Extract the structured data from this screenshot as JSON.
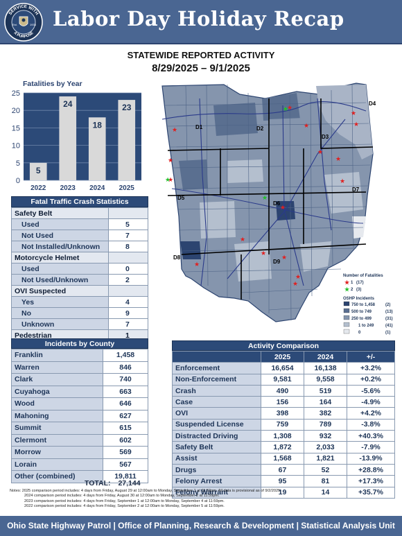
{
  "header": {
    "title": "Labor Day Holiday Recap",
    "seal": {
      "top_text": "SERVICE WITH",
      "bottom_text": "A PURPOSE",
      "est": "Est.",
      "year": "1933"
    }
  },
  "main_title": "STATEWIDE REPORTED ACTIVITY",
  "date_range": "8/29/2025 – 9/1/2025",
  "chart_data": {
    "type": "bar",
    "title": "Fatalities by Year",
    "categories": [
      "2022",
      "2023",
      "2024",
      "2025"
    ],
    "values": [
      5,
      24,
      18,
      23
    ],
    "ylim": [
      0,
      25
    ],
    "yticks": [
      0,
      5,
      10,
      15,
      20,
      25
    ],
    "grid": true,
    "bar_color": "#d9d9d9",
    "plot_background": "#2c4a78"
  },
  "fatal_stats": {
    "title": "Fatal Traffic Crash Statistics",
    "rows": [
      {
        "type": "section",
        "label": "Safety Belt",
        "value": ""
      },
      {
        "type": "row",
        "label": "Used",
        "value": "5"
      },
      {
        "type": "row",
        "label": "Not Used",
        "value": "7"
      },
      {
        "type": "row",
        "label": "Not Installed/Unknown",
        "value": "8"
      },
      {
        "type": "section",
        "label": "Motorcycle Helmet",
        "value": ""
      },
      {
        "type": "row",
        "label": "Used",
        "value": "0"
      },
      {
        "type": "row",
        "label": "Not Used/Unknown",
        "value": "2"
      },
      {
        "type": "section",
        "label": "OVI Suspected",
        "value": ""
      },
      {
        "type": "row",
        "label": "Yes",
        "value": "4"
      },
      {
        "type": "row",
        "label": "No",
        "value": "9"
      },
      {
        "type": "row",
        "label": "Unknown",
        "value": "7"
      },
      {
        "type": "section",
        "label": "Pedestrian",
        "value": "1"
      }
    ]
  },
  "incidents": {
    "title": "Incidents by County",
    "rows": [
      {
        "county": "Franklin",
        "value": "1,458"
      },
      {
        "county": "Warren",
        "value": "846"
      },
      {
        "county": "Clark",
        "value": "740"
      },
      {
        "county": "Cuyahoga",
        "value": "663"
      },
      {
        "county": "Wood",
        "value": "646"
      },
      {
        "county": "Mahoning",
        "value": "627"
      },
      {
        "county": "Summit",
        "value": "615"
      },
      {
        "county": "Clermont",
        "value": "602"
      },
      {
        "county": "Morrow",
        "value": "569"
      },
      {
        "county": "Lorain",
        "value": "567"
      },
      {
        "county": "Other (combined)",
        "value": "19,811"
      }
    ],
    "total_label": "TOTAL:",
    "total_value": "27,144"
  },
  "activity": {
    "title": "Activity Comparison",
    "columns": [
      "",
      "2025",
      "2024",
      "+/-"
    ],
    "rows": [
      {
        "label": "Enforcement",
        "y2025": "16,654",
        "y2024": "16,138",
        "change": "+3.2%"
      },
      {
        "label": "Non-Enforcement",
        "y2025": "9,581",
        "y2024": "9,558",
        "change": "+0.2%"
      },
      {
        "label": "Crash",
        "y2025": "490",
        "y2024": "519",
        "change": "-5.6%"
      },
      {
        "label": "Case",
        "y2025": "156",
        "y2024": "164",
        "change": "-4.9%"
      },
      {
        "label": "OVI",
        "y2025": "398",
        "y2024": "382",
        "change": "+4.2%"
      },
      {
        "label": "Suspended License",
        "y2025": "759",
        "y2024": "789",
        "change": "-3.8%"
      },
      {
        "label": "Distracted Driving",
        "y2025": "1,308",
        "y2024": "932",
        "change": "+40.3%"
      },
      {
        "label": "Safety Belt",
        "y2025": "1,872",
        "y2024": "2,033",
        "change": "-7.9%"
      },
      {
        "label": "Assist",
        "y2025": "1,568",
        "y2024": "1,821",
        "change": "-13.9%"
      },
      {
        "label": "Drugs",
        "y2025": "67",
        "y2024": "52",
        "change": "+28.8%"
      },
      {
        "label": "Felony Arrest",
        "y2025": "95",
        "y2024": "81",
        "change": "+17.3%"
      },
      {
        "label": "Felony Warrant",
        "y2025": "19",
        "y2024": "14",
        "change": "+35.7%"
      }
    ]
  },
  "map": {
    "districts": [
      "D1",
      "D2",
      "D3",
      "D4",
      "D5",
      "D6",
      "D7",
      "D8",
      "D9"
    ],
    "legend": {
      "fatal_title": "Number of Fatalities",
      "fatal_items": [
        {
          "label": "1",
          "count": "(17)",
          "color": "#e02020"
        },
        {
          "label": "2",
          "count": "(3)",
          "color": "#22c02a"
        }
      ],
      "incident_title": "OSHP Incidents",
      "incident_items": [
        {
          "range": "750  to  1,458",
          "count": "(2)",
          "color": "#2c4470"
        },
        {
          "range": "500  to    749",
          "count": "(13)",
          "color": "#5a6f90"
        },
        {
          "range": "250  to    499",
          "count": "(31)",
          "color": "#8595ad"
        },
        {
          "range": "1  to    249",
          "count": "(41)",
          "color": "#b4bfce"
        },
        {
          "range": "0",
          "count": "(1)",
          "color": "#e6e9ee"
        }
      ]
    }
  },
  "notes": [
    "Notes: 2025 comparison period includes: 4 days from Friday, August 29 at 12:00am to Monday, September 1 at 11:59pm. All data is provisional as of 9/2/2025.",
    "2024 comparison period includes: 4 days from Friday, August 30 at 12:00am to Monday, September 2 at 11:59pm.",
    "2023 comparison period includes: 4 days from Friday, September 1 at 12:00am to Monday, September 4 at 11:59pm.",
    "2022 comparison period includes: 4 days from Friday, September 2 at 12:00am to Monday, September 5 at 11:59pm."
  ],
  "footer": "Ohio State Highway Patrol  |  Office of Planning, Research & Development  |  Statistical Analysis Unit"
}
